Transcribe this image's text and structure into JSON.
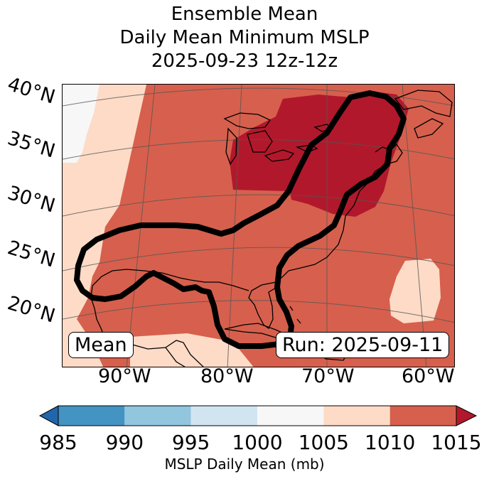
{
  "title": {
    "line1": "Ensemble Mean",
    "line2": "Daily Mean Minimum MSLP",
    "line3": "2025-09-23 12z-12z"
  },
  "map": {
    "lat_labels": [
      "40°N",
      "35°N",
      "30°N",
      "25°N",
      "20°N"
    ],
    "lon_labels": [
      "90°W",
      "80°W",
      "70°W",
      "60°W"
    ],
    "stat_label": "Mean",
    "run_label": "Run: 2025-09-11",
    "colors": {
      "c1000_1005": "#f7f7f7",
      "c1005_1010": "#fddbc7",
      "c1010_1015": "#d6604d",
      "c_over_1015": "#b2182b",
      "contour": "#000000",
      "coast": "#000000",
      "grid": "#555555"
    }
  },
  "colorbar": {
    "label": "MSLP Daily Mean (mb)",
    "ticks": [
      "985",
      "990",
      "995",
      "1000",
      "1005",
      "1010",
      "1015"
    ],
    "colors": [
      "#4393c3",
      "#92c5de",
      "#d1e5f0",
      "#f7f7f7",
      "#fddbc7",
      "#d6604d"
    ],
    "under_color": "#2166ac",
    "over_color": "#b2182b"
  }
}
